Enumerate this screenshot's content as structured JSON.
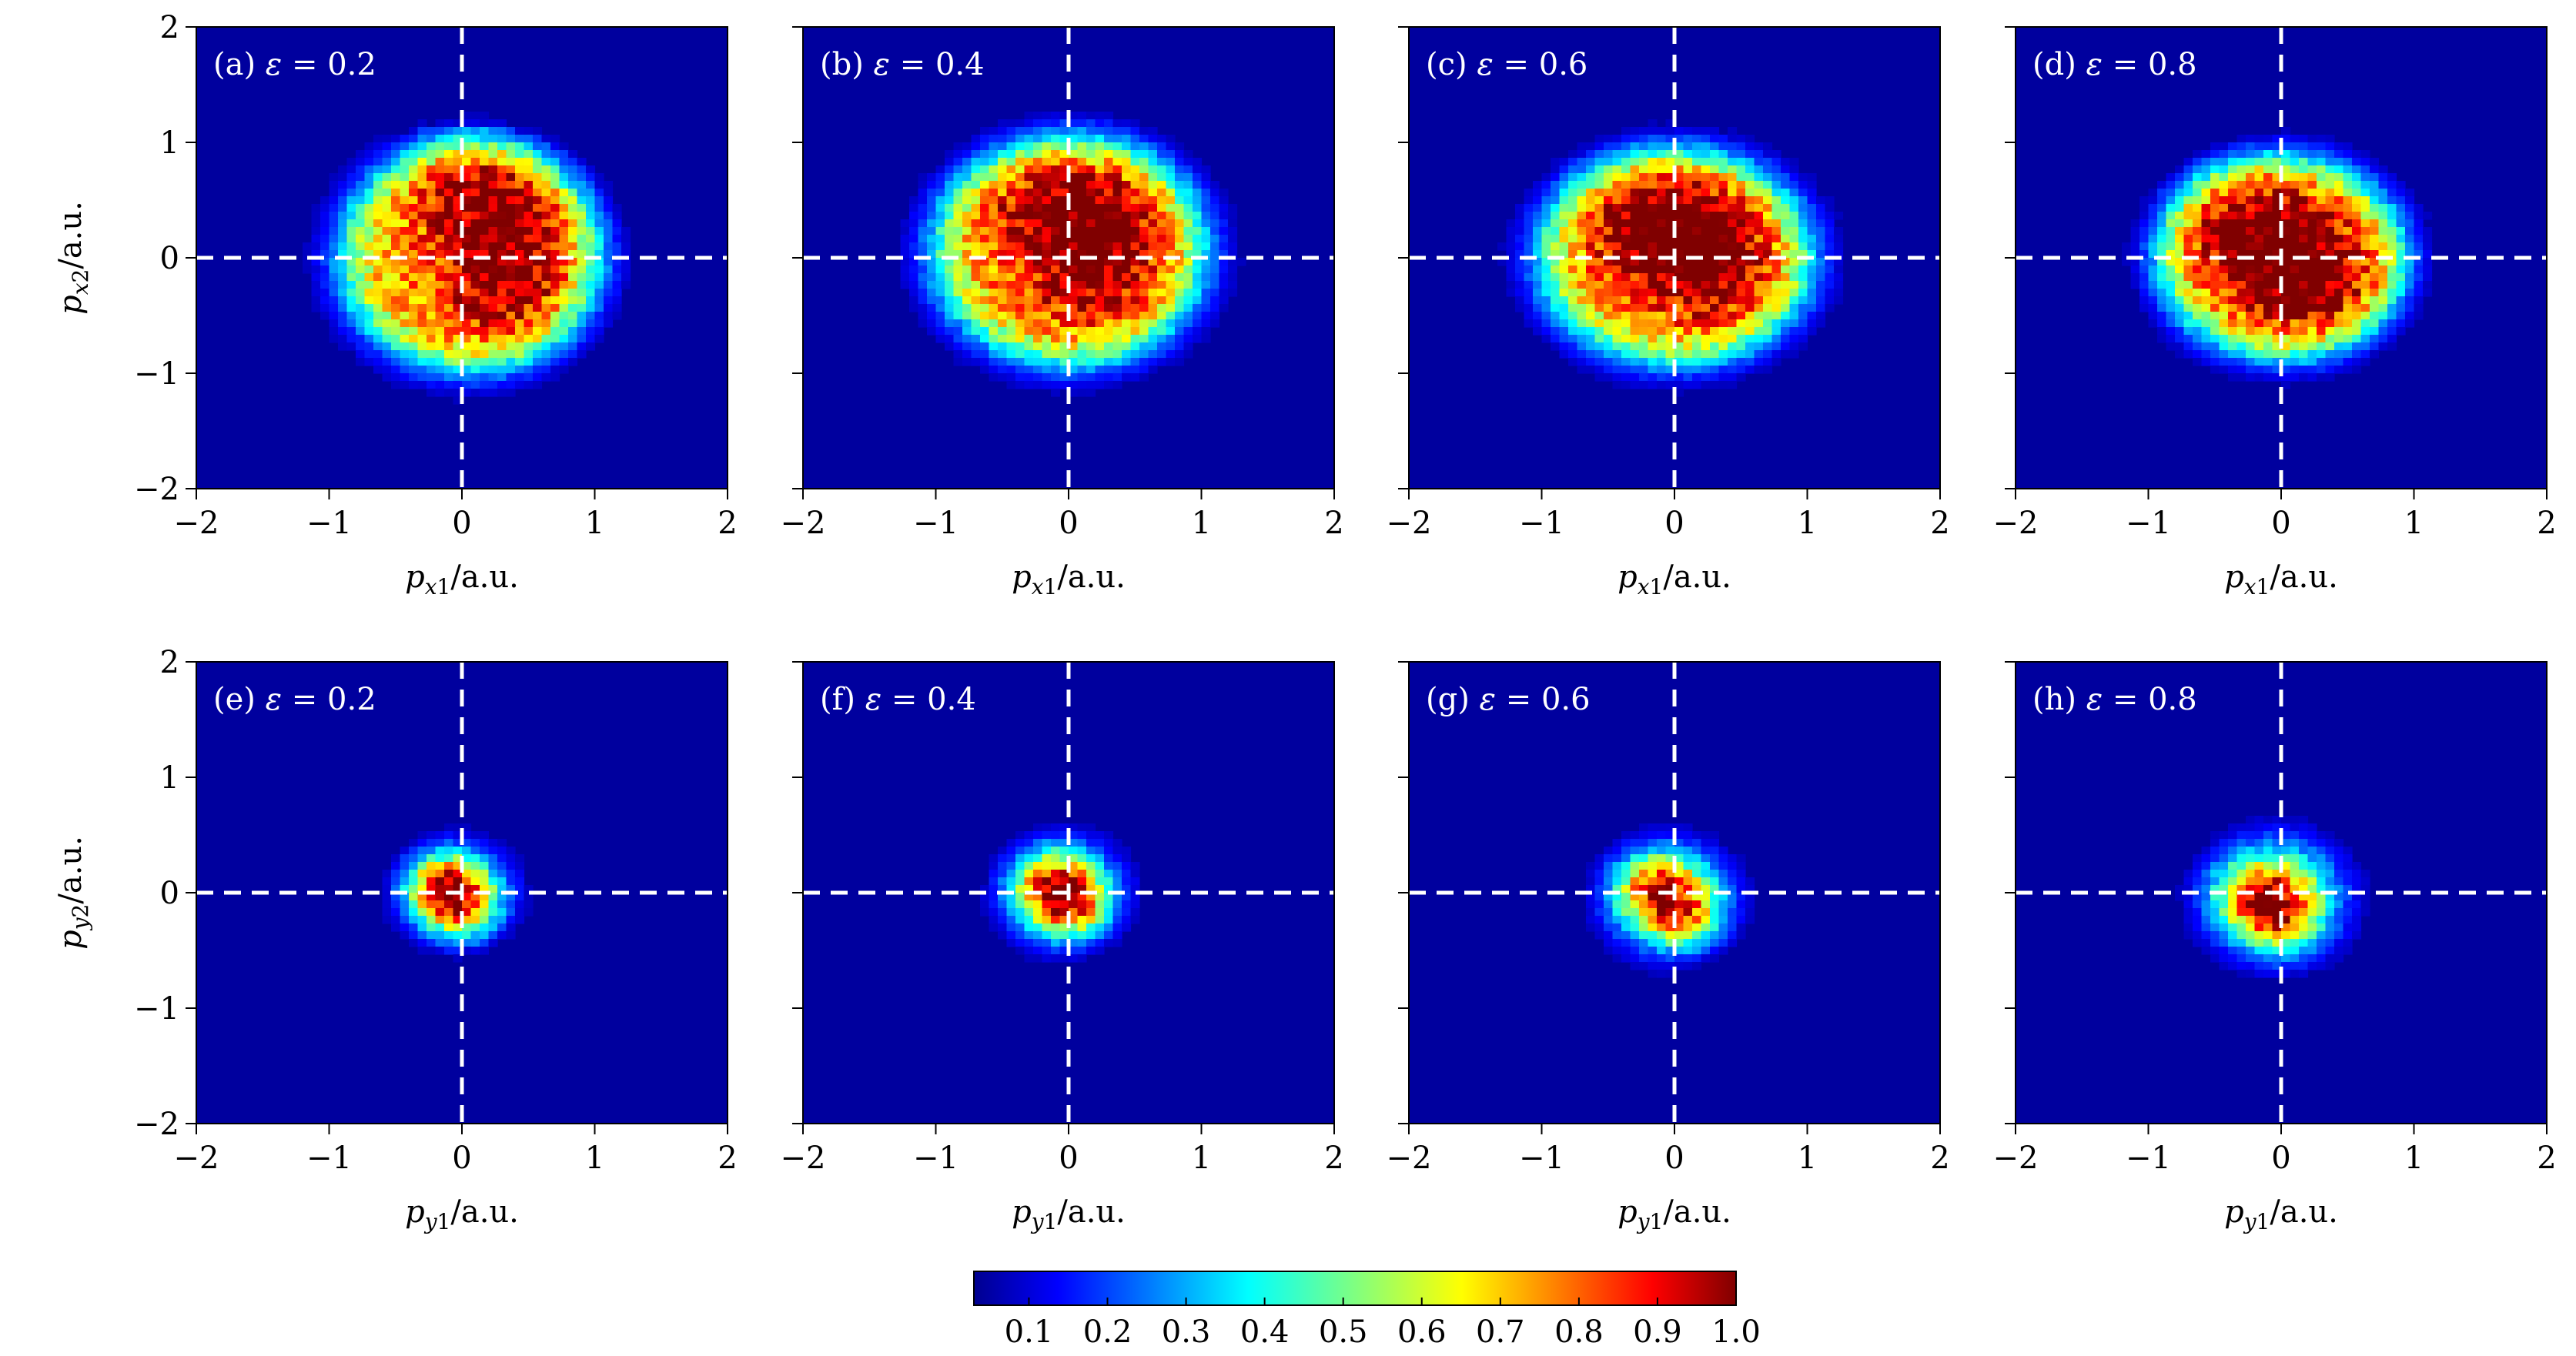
{
  "chart_data": [
    {
      "type": "heatmap",
      "label": "(a)",
      "epsilon": "0.2",
      "xlabel": "p_{x1}/a.u.",
      "ylabel": "p_{x2}/a.u.",
      "xlim": [
        -2,
        2
      ],
      "ylim": [
        -2,
        2
      ],
      "x_ticks": [
        "−2",
        "−1",
        "0",
        "1",
        "2"
      ],
      "y_ticks": [
        "−2",
        "−1",
        "0",
        "1",
        "2"
      ],
      "dist": {
        "cx": 0.05,
        "cy": 0.0,
        "sx": 0.95,
        "sy": 0.95,
        "shape": "disc",
        "hotspots": [
          [
            0.4,
            0.3
          ],
          [
            0.3,
            -0.3
          ],
          [
            0.1,
            0.7
          ]
        ]
      }
    },
    {
      "type": "heatmap",
      "label": "(b)",
      "epsilon": "0.4",
      "xlabel": "p_{x1}/a.u.",
      "ylabel": "",
      "xlim": [
        -2,
        2
      ],
      "ylim": [
        -2,
        2
      ],
      "x_ticks": [
        "−2",
        "−1",
        "0",
        "1",
        "2"
      ],
      "y_ticks": [
        "",
        "",
        "",
        "",
        ""
      ],
      "dist": {
        "cx": 0.0,
        "cy": 0.05,
        "sx": 1.0,
        "sy": 0.95,
        "shape": "disc",
        "hotspots": [
          [
            -0.2,
            0.4
          ],
          [
            0.3,
            0.4
          ],
          [
            0.2,
            -0.2
          ]
        ]
      }
    },
    {
      "type": "heatmap",
      "label": "(c)",
      "epsilon": "0.6",
      "xlabel": "p_{x1}/a.u.",
      "ylabel": "",
      "xlim": [
        -2,
        2
      ],
      "ylim": [
        -2,
        2
      ],
      "x_ticks": [
        "−2",
        "−1",
        "0",
        "1",
        "2"
      ],
      "y_ticks": [
        "",
        "",
        "",
        "",
        ""
      ],
      "dist": {
        "cx": 0.0,
        "cy": 0.0,
        "sx": 1.0,
        "sy": 0.9,
        "shape": "disc",
        "hotspots": [
          [
            -0.2,
            0.3
          ],
          [
            0.3,
            -0.1
          ],
          [
            0.1,
            0.2
          ]
        ]
      }
    },
    {
      "type": "heatmap",
      "label": "(d)",
      "epsilon": "0.8",
      "xlabel": "p_{x1}/a.u.",
      "ylabel": "",
      "xlim": [
        -2,
        2
      ],
      "ylim": [
        -2,
        2
      ],
      "x_ticks": [
        "−2",
        "−1",
        "0",
        "1",
        "2"
      ],
      "y_ticks": [
        "",
        "",
        "",
        "",
        ""
      ],
      "dist": {
        "cx": 0.0,
        "cy": 0.0,
        "sx": 0.9,
        "sy": 0.85,
        "shape": "disc",
        "hotspots": [
          [
            -0.3,
            0.3
          ],
          [
            0.3,
            -0.2
          ],
          [
            0.0,
            0.0
          ]
        ]
      }
    },
    {
      "type": "heatmap",
      "label": "(e)",
      "epsilon": "0.2",
      "xlabel": "p_{y1}/a.u.",
      "ylabel": "p_{y2}/a.u.",
      "xlim": [
        -2,
        2
      ],
      "ylim": [
        -2,
        2
      ],
      "x_ticks": [
        "−2",
        "−1",
        "0",
        "1",
        "2"
      ],
      "y_ticks": [
        "−2",
        "−1",
        "0",
        "1",
        "2"
      ],
      "dist": {
        "cx": -0.05,
        "cy": 0.0,
        "sx": 0.33,
        "sy": 0.33,
        "shape": "gauss",
        "hotspots": [
          [
            -0.2,
            0.1
          ],
          [
            0.0,
            -0.2
          ]
        ]
      }
    },
    {
      "type": "heatmap",
      "label": "(f)",
      "epsilon": "0.4",
      "xlabel": "p_{y1}/a.u.",
      "ylabel": "",
      "xlim": [
        -2,
        2
      ],
      "ylim": [
        -2,
        2
      ],
      "x_ticks": [
        "−2",
        "−1",
        "0",
        "1",
        "2"
      ],
      "y_ticks": [
        "",
        "",
        "",
        "",
        ""
      ],
      "dist": {
        "cx": -0.05,
        "cy": 0.0,
        "sx": 0.36,
        "sy": 0.36,
        "shape": "gauss",
        "hotspots": [
          [
            -0.15,
            0.1
          ],
          [
            0.05,
            -0.15
          ]
        ]
      }
    },
    {
      "type": "heatmap",
      "label": "(g)",
      "epsilon": "0.6",
      "xlabel": "p_{y1}/a.u.",
      "ylabel": "",
      "xlim": [
        -2,
        2
      ],
      "ylim": [
        -2,
        2
      ],
      "x_ticks": [
        "−2",
        "−1",
        "0",
        "1",
        "2"
      ],
      "y_ticks": [
        "",
        "",
        "",
        "",
        ""
      ],
      "dist": {
        "cx": -0.05,
        "cy": -0.05,
        "sx": 0.38,
        "sy": 0.38,
        "shape": "gauss",
        "hotspots": [
          [
            -0.2,
            0.1
          ],
          [
            0.1,
            -0.25
          ]
        ]
      }
    },
    {
      "type": "heatmap",
      "label": "(h)",
      "epsilon": "0.8",
      "xlabel": "p_{y1}/a.u.",
      "ylabel": "",
      "xlim": [
        -2,
        2
      ],
      "ylim": [
        -2,
        2
      ],
      "x_ticks": [
        "−2",
        "−1",
        "0",
        "1",
        "2"
      ],
      "y_ticks": [
        "",
        "",
        "",
        "",
        ""
      ],
      "dist": {
        "cx": -0.05,
        "cy": -0.05,
        "sx": 0.42,
        "sy": 0.42,
        "shape": "gauss",
        "hotspots": [
          [
            -0.25,
            0.0
          ],
          [
            0.0,
            -0.3
          ]
        ]
      }
    }
  ],
  "colorbar": {
    "colormap": "jet",
    "range": [
      0.03,
      1.0
    ],
    "ticks": [
      "0.1",
      "0.2",
      "0.3",
      "0.4",
      "0.5",
      "0.6",
      "0.7",
      "0.8",
      "0.9",
      "1.0"
    ]
  }
}
